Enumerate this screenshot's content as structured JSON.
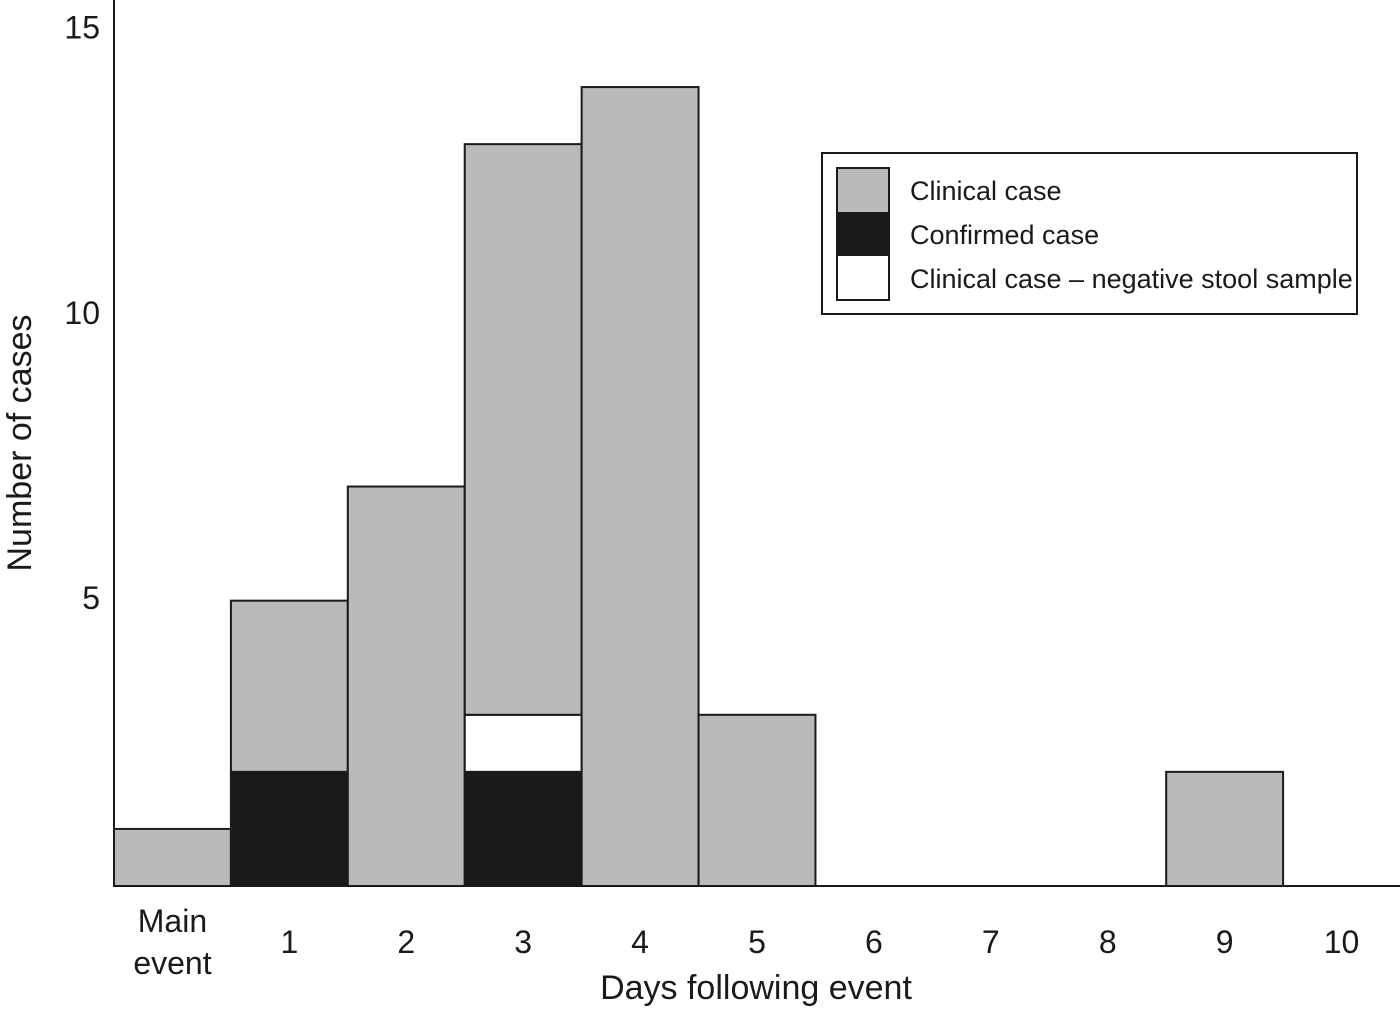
{
  "chart_data": {
    "type": "stacked-bar",
    "x_label": "Days following event",
    "y_label": "Number of cases",
    "categories": [
      "Main event",
      "1",
      "2",
      "3",
      "4",
      "5",
      "6",
      "7",
      "8",
      "9",
      "10"
    ],
    "series": [
      {
        "name": "Confirmed case",
        "color": "#1a1a1a",
        "values": [
          0,
          2,
          0,
          2,
          0,
          0,
          0,
          0,
          0,
          0,
          0
        ]
      },
      {
        "name": "Clinical case – negative stool sample",
        "color": "#ffffff",
        "values": [
          0,
          0,
          0,
          1,
          0,
          0,
          0,
          0,
          0,
          0,
          0
        ]
      },
      {
        "name": "Clinical case",
        "color": "#bababa",
        "values": [
          1,
          3,
          7,
          10,
          14,
          3,
          0,
          0,
          0,
          2,
          0
        ]
      }
    ],
    "legend_order": [
      2,
      0,
      1
    ],
    "ylim": [
      0,
      15
    ],
    "yticks": [
      5,
      10,
      15
    ],
    "grid": false
  }
}
